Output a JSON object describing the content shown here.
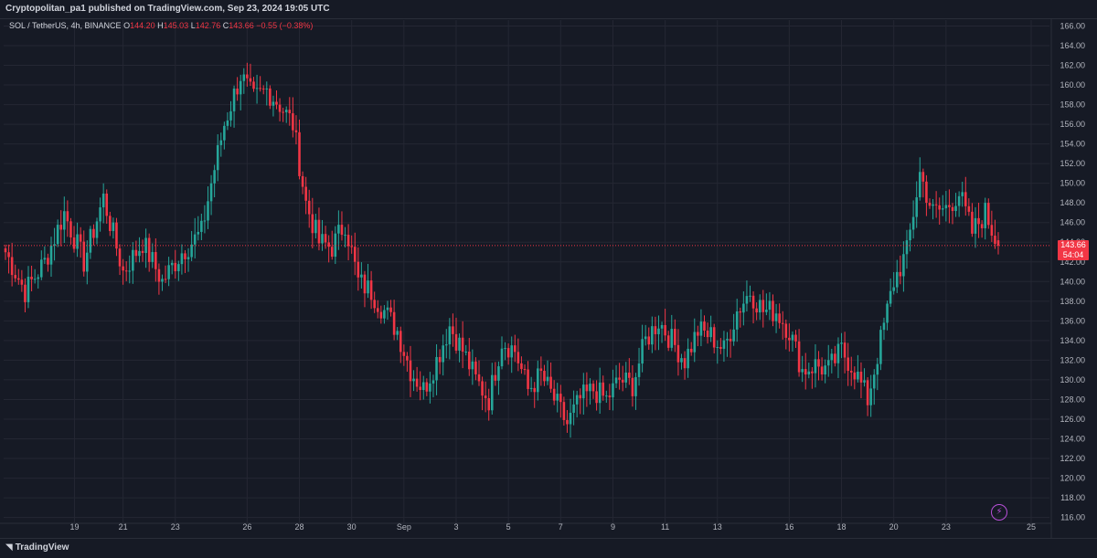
{
  "header": {
    "published": "Cryptopolitan_pa1 published on TradingView.com, Sep 23, 2024 19:05 UTC"
  },
  "legend": {
    "symbol": "SOL / TetherUS, 4h, BINANCE",
    "o_label": "O",
    "o_value": "144.20",
    "h_label": "H",
    "h_value": "145.03",
    "l_label": "L",
    "l_value": "142.76",
    "c_label": "C",
    "c_value": "143.66",
    "change": "−0.55 (−0.38%)"
  },
  "price_badge": {
    "price": "143.66",
    "countdown": "54:04"
  },
  "footer": {
    "logo_text": "TradingView"
  },
  "colors": {
    "background": "#161a25",
    "up": "#26a69a",
    "down": "#f23645",
    "grid": "#242733",
    "axis_text": "#b2b5be"
  },
  "chart_data": {
    "type": "candlestick",
    "y_ticks": [
      116,
      118,
      120,
      122,
      124,
      126,
      128,
      130,
      132,
      134,
      136,
      138,
      140,
      142,
      144,
      146,
      148,
      150,
      152,
      154,
      156,
      158,
      160,
      162,
      164,
      166
    ],
    "ylim": [
      115.5,
      166.6
    ],
    "x_ticks": [
      "19",
      "21",
      "23",
      "26",
      "28",
      "30",
      "Sep",
      "3",
      "5",
      "7",
      "9",
      "11",
      "13",
      "16",
      "18",
      "20",
      "23",
      "25"
    ],
    "last_price": 143.66,
    "anchors": [
      {
        "i": 0,
        "p": 143.0
      },
      {
        "i": 6,
        "p": 139.0
      },
      {
        "i": 12,
        "p": 142.0
      },
      {
        "i": 18,
        "p": 147.0
      },
      {
        "i": 24,
        "p": 142.0
      },
      {
        "i": 30,
        "p": 148.5
      },
      {
        "i": 36,
        "p": 141.0
      },
      {
        "i": 42,
        "p": 144.0
      },
      {
        "i": 48,
        "p": 140.0
      },
      {
        "i": 54,
        "p": 143.0
      },
      {
        "i": 60,
        "p": 145.0
      },
      {
        "i": 63,
        "p": 150.0
      },
      {
        "i": 67,
        "p": 156.0
      },
      {
        "i": 72,
        "p": 161.0
      },
      {
        "i": 76,
        "p": 158.5
      },
      {
        "i": 80,
        "p": 159.5
      },
      {
        "i": 84,
        "p": 158.0
      },
      {
        "i": 88,
        "p": 156.0
      },
      {
        "i": 92,
        "p": 148.0
      },
      {
        "i": 96,
        "p": 144.0
      },
      {
        "i": 100,
        "p": 143.5
      },
      {
        "i": 104,
        "p": 146.0
      },
      {
        "i": 108,
        "p": 140.0
      },
      {
        "i": 112,
        "p": 139.0
      },
      {
        "i": 116,
        "p": 137.0
      },
      {
        "i": 120,
        "p": 135.0
      },
      {
        "i": 124,
        "p": 131.0
      },
      {
        "i": 128,
        "p": 129.0
      },
      {
        "i": 132,
        "p": 132.0
      },
      {
        "i": 136,
        "p": 135.5
      },
      {
        "i": 140,
        "p": 133.0
      },
      {
        "i": 144,
        "p": 130.0
      },
      {
        "i": 148,
        "p": 128.0
      },
      {
        "i": 152,
        "p": 134.0
      },
      {
        "i": 156,
        "p": 133.0
      },
      {
        "i": 160,
        "p": 129.0
      },
      {
        "i": 164,
        "p": 130.5
      },
      {
        "i": 168,
        "p": 128.0
      },
      {
        "i": 172,
        "p": 125.5
      },
      {
        "i": 176,
        "p": 128.0
      },
      {
        "i": 180,
        "p": 129.0
      },
      {
        "i": 184,
        "p": 128.0
      },
      {
        "i": 188,
        "p": 130.0
      },
      {
        "i": 192,
        "p": 129.5
      },
      {
        "i": 196,
        "p": 134.0
      },
      {
        "i": 200,
        "p": 136.0
      },
      {
        "i": 204,
        "p": 134.0
      },
      {
        "i": 208,
        "p": 132.0
      },
      {
        "i": 212,
        "p": 135.0
      },
      {
        "i": 216,
        "p": 134.5
      },
      {
        "i": 220,
        "p": 133.0
      },
      {
        "i": 224,
        "p": 137.0
      },
      {
        "i": 228,
        "p": 139.0
      },
      {
        "i": 232,
        "p": 137.0
      },
      {
        "i": 236,
        "p": 137.0
      },
      {
        "i": 240,
        "p": 135.0
      },
      {
        "i": 244,
        "p": 131.0
      },
      {
        "i": 248,
        "p": 131.5
      },
      {
        "i": 252,
        "p": 131.0
      },
      {
        "i": 256,
        "p": 133.0
      },
      {
        "i": 260,
        "p": 131.0
      },
      {
        "i": 264,
        "p": 128.0
      },
      {
        "i": 268,
        "p": 134.0
      },
      {
        "i": 272,
        "p": 140.0
      },
      {
        "i": 276,
        "p": 143.0
      },
      {
        "i": 280,
        "p": 151.0
      },
      {
        "i": 284,
        "p": 147.0
      },
      {
        "i": 288,
        "p": 147.5
      },
      {
        "i": 292,
        "p": 149.0
      },
      {
        "i": 296,
        "p": 145.0
      },
      {
        "i": 300,
        "p": 147.0
      },
      {
        "i": 304,
        "p": 143.66
      }
    ],
    "total_candles": 305
  }
}
